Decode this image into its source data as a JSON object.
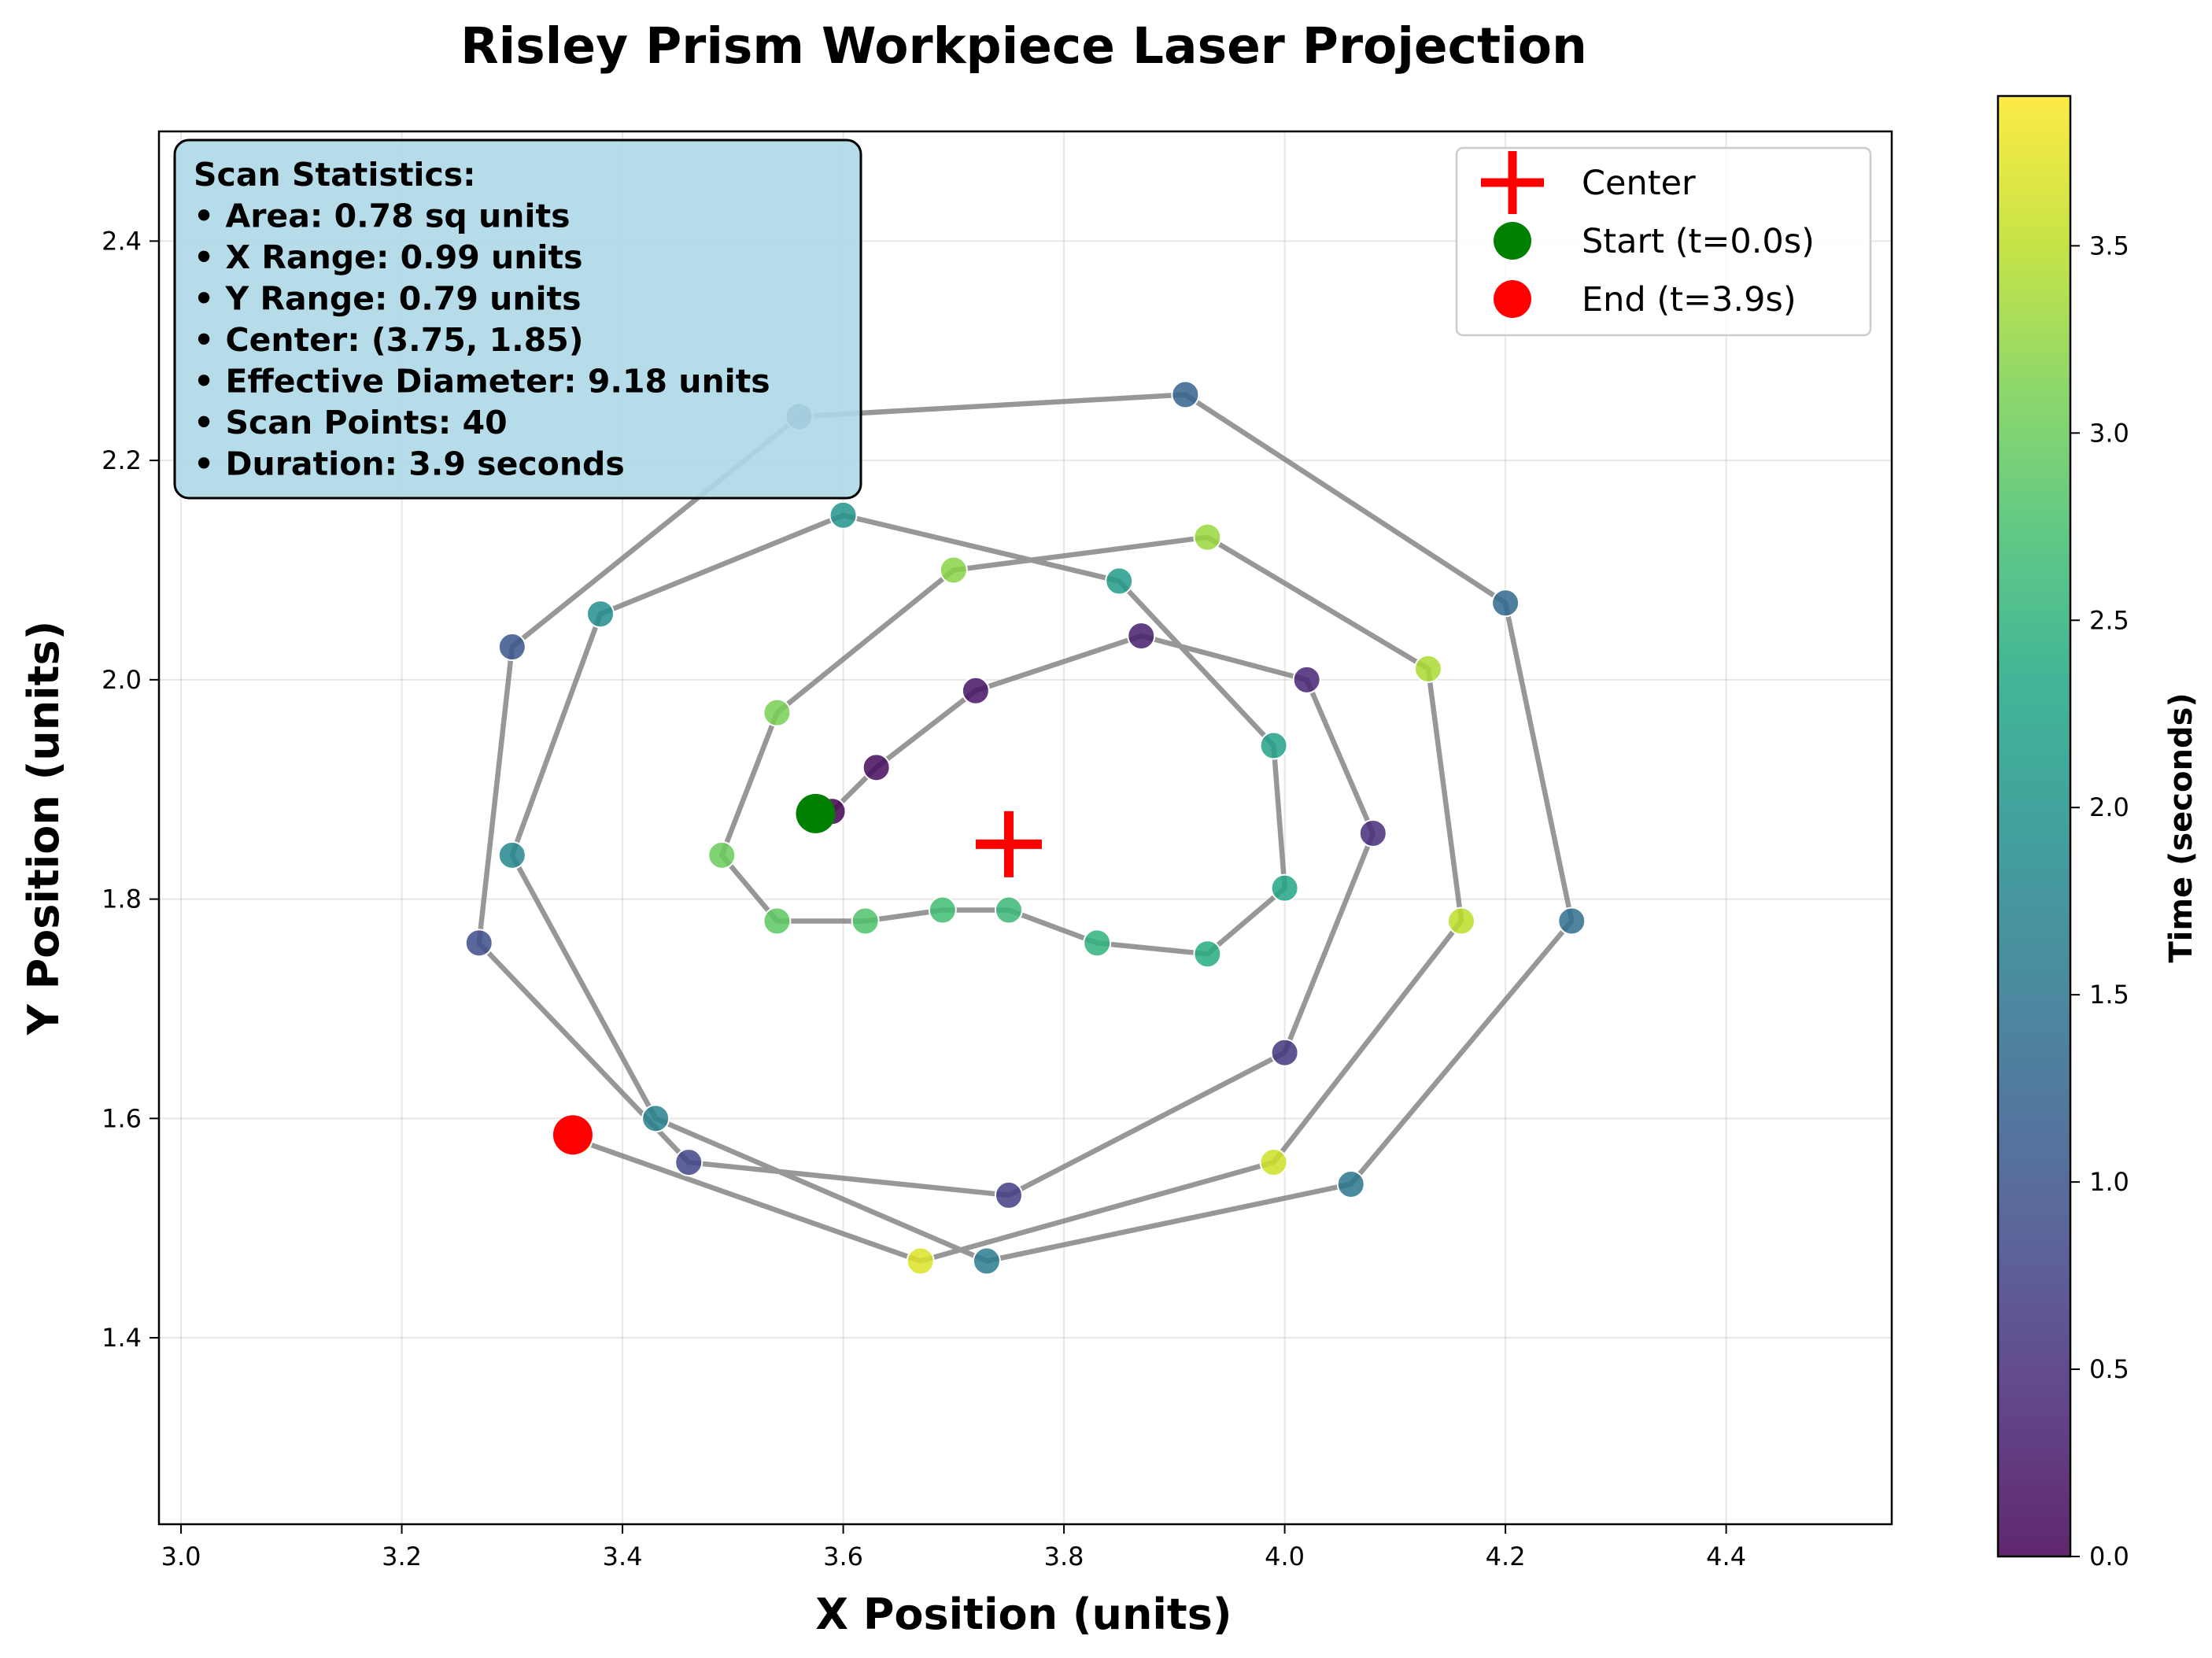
{
  "chart_data": {
    "type": "scatter",
    "title": "Risley Prism Workpiece Laser Projection",
    "xlabel": "X Position (units)",
    "ylabel": "Y Position (units)",
    "xlim": [
      2.98,
      4.55
    ],
    "ylim": [
      1.23,
      2.5
    ],
    "x_ticks": [
      "3.0",
      "3.2",
      "3.4",
      "3.6",
      "3.8",
      "4.0",
      "4.2",
      "4.4"
    ],
    "y_ticks": [
      "1.4",
      "1.6",
      "1.8",
      "2.0",
      "2.2",
      "2.4"
    ],
    "grid": true,
    "colormap": "viridis",
    "colorbar": {
      "label": "Time (seconds)",
      "range": [
        0.0,
        3.9
      ],
      "ticks": [
        "0.0",
        "0.5",
        "1.0",
        "1.5",
        "2.0",
        "2.5",
        "3.0",
        "3.5"
      ]
    },
    "path_color": "#808080",
    "points": {
      "t": [
        0.0,
        0.1,
        0.2,
        0.3,
        0.4,
        0.5,
        0.6,
        0.7,
        0.8,
        0.9,
        1.0,
        1.1,
        1.2,
        1.3,
        1.4,
        1.5,
        1.6,
        1.7,
        1.8,
        1.9,
        2.0,
        2.1,
        2.2,
        2.3,
        2.4,
        2.5,
        2.6,
        2.7,
        2.8,
        2.9,
        3.0,
        3.1,
        3.2,
        3.3,
        3.4,
        3.5,
        3.6,
        3.7,
        3.8,
        3.9
      ],
      "x": [
        3.59,
        3.63,
        3.72,
        3.87,
        4.02,
        4.08,
        4.0,
        3.75,
        3.46,
        3.27,
        3.3,
        3.56,
        3.91,
        4.2,
        4.26,
        4.06,
        3.73,
        3.43,
        3.3,
        3.38,
        3.6,
        3.85,
        3.99,
        4.0,
        3.93,
        3.83,
        3.75,
        3.69,
        3.62,
        3.54,
        3.49,
        3.54,
        3.7,
        3.93,
        4.13,
        4.16,
        3.99,
        3.67,
        3.36,
        3.36
      ],
      "y": [
        1.88,
        1.92,
        1.99,
        2.04,
        2.0,
        1.86,
        1.66,
        1.53,
        1.56,
        1.76,
        2.03,
        2.24,
        2.26,
        2.07,
        1.78,
        1.54,
        1.47,
        1.6,
        1.84,
        2.06,
        2.15,
        2.09,
        1.94,
        1.81,
        1.75,
        1.76,
        1.79,
        1.79,
        1.78,
        1.78,
        1.84,
        1.97,
        2.1,
        2.13,
        2.01,
        1.78,
        1.56,
        1.47,
        1.58,
        1.58
      ]
    },
    "center": {
      "x": 3.75,
      "y": 1.85,
      "color": "#ff0000"
    },
    "start": {
      "x": 3.575,
      "y": 1.878,
      "color": "#008000"
    },
    "end": {
      "x": 3.355,
      "y": 1.585,
      "color": "#ff0000"
    },
    "legend": {
      "placement": "upper-right",
      "entries": [
        {
          "label": "Center",
          "marker": "plus",
          "color": "#ff0000"
        },
        {
          "label": "Start (t=0.0s)",
          "marker": "circle",
          "color": "#008000"
        },
        {
          "label": "End (t=3.9s)",
          "marker": "circle",
          "color": "#ff0000"
        }
      ]
    },
    "stats_box": {
      "placement": "upper-left",
      "background": "#add8e6",
      "lines": [
        "Scan Statistics:",
        "• Area: 0.78 sq units",
        "• X Range: 0.99 units",
        "• Y Range: 0.79 units",
        "• Center: (3.75, 1.85)",
        "• Effective Diameter: 9.18 units",
        "• Scan Points: 40",
        "• Duration: 3.9 seconds"
      ]
    }
  }
}
